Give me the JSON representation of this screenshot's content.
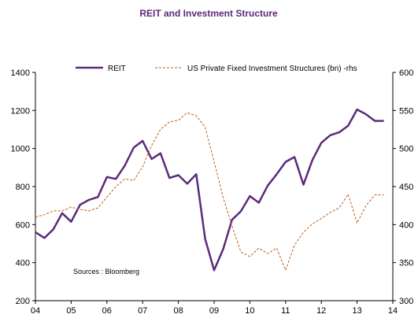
{
  "chart_data": {
    "type": "line",
    "title": "REIT and Investment Structure",
    "title_color": "#5b2a7a",
    "x_tick_labels": [
      "04",
      "05",
      "06",
      "07",
      "08",
      "09",
      "10",
      "11",
      "12",
      "13",
      "14"
    ],
    "xlim": [
      2004,
      2014
    ],
    "ylim_left": [
      200,
      1400
    ],
    "ylim_right": [
      300,
      600
    ],
    "y_ticks_left": [
      200,
      400,
      600,
      800,
      1000,
      1200,
      1400
    ],
    "y_ticks_right": [
      300,
      350,
      400,
      450,
      500,
      550,
      600
    ],
    "grid": false,
    "legend_position": "top",
    "annotation": "Sources : Bloomberg",
    "series": [
      {
        "name": "REIT",
        "axis": "left",
        "color": "#5b2a7a",
        "style": "solid",
        "x": [
          2004.0,
          2004.25,
          2004.5,
          2004.75,
          2005.0,
          2005.25,
          2005.5,
          2005.75,
          2006.0,
          2006.25,
          2006.5,
          2006.75,
          2007.0,
          2007.25,
          2007.5,
          2007.75,
          2008.0,
          2008.25,
          2008.5,
          2008.75,
          2009.0,
          2009.25,
          2009.5,
          2009.75,
          2010.0,
          2010.25,
          2010.5,
          2010.75,
          2011.0,
          2011.25,
          2011.5,
          2011.75,
          2012.0,
          2012.25,
          2012.5,
          2012.75,
          2013.0,
          2013.25,
          2013.5,
          2013.75
        ],
        "y": [
          560,
          530,
          575,
          660,
          615,
          705,
          730,
          745,
          850,
          840,
          910,
          1005,
          1040,
          945,
          975,
          845,
          860,
          815,
          865,
          525,
          360,
          470,
          625,
          670,
          750,
          715,
          805,
          865,
          930,
          955,
          810,
          940,
          1030,
          1070,
          1085,
          1120,
          1205,
          1180,
          1145,
          1145
        ]
      },
      {
        "name": "US Private Fixed Investment Structures (bn) -rhs",
        "axis": "right",
        "color": "#c05a17",
        "style": "dashed",
        "x": [
          2004.0,
          2004.25,
          2004.5,
          2004.75,
          2005.0,
          2005.25,
          2005.5,
          2005.75,
          2006.0,
          2006.25,
          2006.5,
          2006.75,
          2007.0,
          2007.25,
          2007.5,
          2007.75,
          2008.0,
          2008.25,
          2008.5,
          2008.75,
          2009.0,
          2009.25,
          2009.5,
          2009.75,
          2010.0,
          2010.25,
          2010.5,
          2010.75,
          2011.0,
          2011.25,
          2011.5,
          2011.75,
          2012.0,
          2012.25,
          2012.5,
          2012.75,
          2013.0,
          2013.25,
          2013.5,
          2013.75
        ],
        "y": [
          410,
          413,
          418,
          418,
          423,
          420,
          418,
          422,
          436,
          450,
          460,
          458,
          476,
          504,
          525,
          535,
          537,
          547,
          543,
          528,
          483,
          436,
          398,
          364,
          358,
          369,
          362,
          369,
          340,
          373,
          390,
          401,
          408,
          416,
          422,
          440,
          402,
          425,
          439,
          439
        ]
      }
    ]
  }
}
